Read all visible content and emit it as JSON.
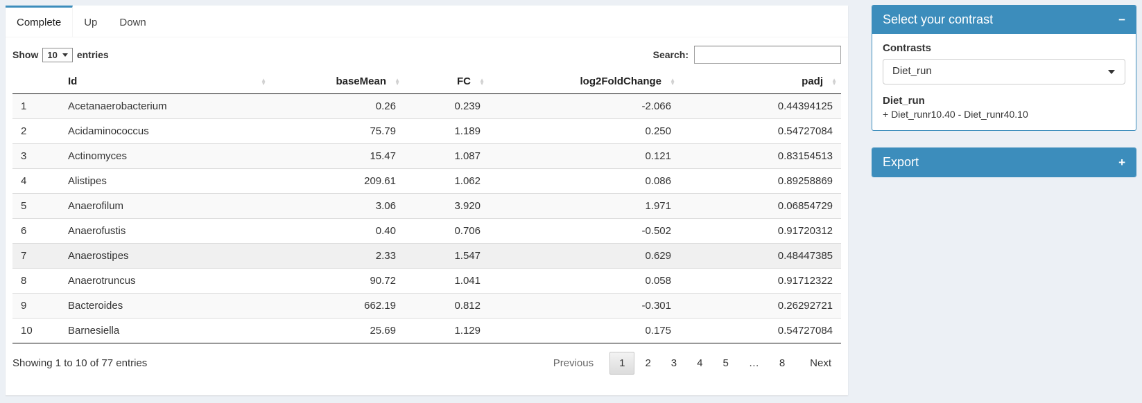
{
  "colors": {
    "primary": "#3c8dbc",
    "page_bg": "#ecf0f5"
  },
  "tabs": [
    {
      "label": "Complete",
      "active": true
    },
    {
      "label": "Up",
      "active": false
    },
    {
      "label": "Down",
      "active": false
    }
  ],
  "length_control": {
    "prefix": "Show",
    "value": "10",
    "suffix": "entries"
  },
  "search": {
    "label": "Search:",
    "value": ""
  },
  "table": {
    "columns": [
      {
        "label": "",
        "sortable": false
      },
      {
        "label": "Id",
        "sortable": true
      },
      {
        "label": "baseMean",
        "sortable": true
      },
      {
        "label": "FC",
        "sortable": true
      },
      {
        "label": "log2FoldChange",
        "sortable": true
      },
      {
        "label": "padj",
        "sortable": true
      }
    ],
    "hovered_row_index": 6,
    "rows": [
      [
        "1",
        "Acetanaerobacterium",
        "0.26",
        "0.239",
        "-2.066",
        "0.44394125"
      ],
      [
        "2",
        "Acidaminococcus",
        "75.79",
        "1.189",
        "0.250",
        "0.54727084"
      ],
      [
        "3",
        "Actinomyces",
        "15.47",
        "1.087",
        "0.121",
        "0.83154513"
      ],
      [
        "4",
        "Alistipes",
        "209.61",
        "1.062",
        "0.086",
        "0.89258869"
      ],
      [
        "5",
        "Anaerofilum",
        "3.06",
        "3.920",
        "1.971",
        "0.06854729"
      ],
      [
        "6",
        "Anaerofustis",
        "0.40",
        "0.706",
        "-0.502",
        "0.91720312"
      ],
      [
        "7",
        "Anaerostipes",
        "2.33",
        "1.547",
        "0.629",
        "0.48447385"
      ],
      [
        "8",
        "Anaerotruncus",
        "90.72",
        "1.041",
        "0.058",
        "0.91712322"
      ],
      [
        "9",
        "Bacteroides",
        "662.19",
        "0.812",
        "-0.301",
        "0.26292721"
      ],
      [
        "10",
        "Barnesiella",
        "25.69",
        "1.129",
        "0.175",
        "0.54727084"
      ]
    ]
  },
  "footer": {
    "info": "Showing 1 to 10 of 77 entries",
    "pagination": {
      "previous": "Previous",
      "pages": [
        "1",
        "2",
        "3",
        "4",
        "5",
        "…",
        "8"
      ],
      "current": "1",
      "next": "Next"
    }
  },
  "sidebar": {
    "contrast_box": {
      "title": "Select your contrast",
      "collapse_icon": "−",
      "label": "Contrasts",
      "selected": "Diet_run",
      "detail_title": "Diet_run",
      "detail_text": "+ Diet_runr10.40 - Diet_runr40.10"
    },
    "export_box": {
      "title": "Export",
      "collapse_icon": "+"
    }
  }
}
